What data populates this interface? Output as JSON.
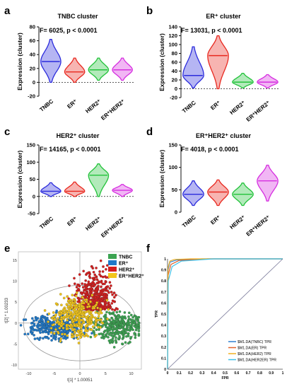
{
  "panels": {
    "a": {
      "letter": "a",
      "title": "TNBC cluster",
      "stat": "F= 6025, p < 0.0001"
    },
    "b": {
      "letter": "b",
      "title": "ER⁺ cluster",
      "stat": "F= 13031, p < 0.0001"
    },
    "c": {
      "letter": "c",
      "title": "HER2⁺ cluster",
      "stat": "F= 14165, p < 0.0001"
    },
    "d": {
      "letter": "d",
      "title": "ER⁺HER2⁺ cluster",
      "stat": "F= 4018, p < 0.0001"
    },
    "e": {
      "letter": "e"
    },
    "f": {
      "letter": "f"
    }
  },
  "colors": {
    "TNBC": "#2b2bdc",
    "ER": "#e8281f",
    "HER2": "#22c23a",
    "ERHER2": "#d62ee0",
    "sTNBC": "#3ba351",
    "sER": "#1f78c8",
    "sHER2": "#d41e1e",
    "sERHER2": "#f2c61b"
  },
  "chart_data": [
    {
      "type": "violin",
      "panel": "a",
      "title": "TNBC cluster",
      "ylabel": "Expression (cluster)",
      "categories": [
        "TNBC",
        "ER⁺",
        "HER2⁺",
        "ER⁺HER2⁺"
      ],
      "ylim": [
        -20,
        80
      ],
      "yticks": [
        "-20",
        "0",
        "20",
        "40",
        "60",
        "80"
      ],
      "medians": [
        30,
        15,
        18,
        18
      ],
      "ranges": [
        [
          0,
          62
        ],
        [
          0,
          35
        ],
        [
          3,
          35
        ],
        [
          3,
          35
        ]
      ]
    },
    {
      "type": "violin",
      "panel": "b",
      "title": "ER⁺ cluster",
      "ylabel": "Expression (cluster)",
      "categories": [
        "TNBC",
        "ER⁺",
        "HER2⁺",
        "ER⁺HER2⁺"
      ],
      "ylim": [
        -20,
        140
      ],
      "yticks": [
        "-20",
        "0",
        "20",
        "40",
        "60",
        "80",
        "100",
        "120",
        "140"
      ],
      "medians": [
        30,
        75,
        15,
        15
      ],
      "ranges": [
        [
          2,
          95
        ],
        [
          0,
          120
        ],
        [
          2,
          35
        ],
        [
          2,
          32
        ]
      ]
    },
    {
      "type": "violin",
      "panel": "c",
      "title": "HER2⁺ cluster",
      "ylabel": "Expression (cluster)",
      "categories": [
        "TNBC",
        "ER⁺",
        "HER2⁺",
        "ER⁺HER2⁺"
      ],
      "ylim": [
        -50,
        150
      ],
      "yticks": [
        "-50",
        "0",
        "50",
        "100",
        "150"
      ],
      "medians": [
        15,
        15,
        62,
        18
      ],
      "ranges": [
        [
          0,
          40
        ],
        [
          0,
          42
        ],
        [
          0,
          95
        ],
        [
          0,
          35
        ]
      ]
    },
    {
      "type": "violin",
      "panel": "d",
      "title": "ER⁺HER2⁺ cluster",
      "ylabel": "Expression (cluster)",
      "categories": [
        "TNBC",
        "ER⁺",
        "HER2⁺",
        "ER⁺HER2⁺"
      ],
      "ylim": [
        0,
        150
      ],
      "yticks": [
        "0",
        "50",
        "100",
        "150"
      ],
      "medians": [
        40,
        45,
        40,
        70
      ],
      "ranges": [
        [
          15,
          70
        ],
        [
          15,
          72
        ],
        [
          15,
          65
        ],
        [
          25,
          105
        ]
      ]
    },
    {
      "type": "scatter",
      "panel": "e",
      "xlabel": "t[1] * 1.00051",
      "ylabel": "t[2] * 1.00233",
      "xticks": [
        "-10",
        "-5",
        "0",
        "5",
        "10"
      ],
      "yticks": [
        "-10",
        "-5",
        "0",
        "5",
        "10",
        "15"
      ],
      "xlim": [
        -12,
        12
      ],
      "ylim": [
        -11,
        17
      ],
      "legend_position": "top-right",
      "series": [
        {
          "name": "TNBC",
          "center": [
            7.5,
            -1
          ]
        },
        {
          "name": "ER⁺",
          "center": [
            -4,
            -1
          ]
        },
        {
          "name": "HER2⁺",
          "center": [
            3,
            7
          ]
        },
        {
          "name": "ER⁺HER2⁺",
          "center": [
            0,
            1.5
          ]
        }
      ]
    },
    {
      "type": "line",
      "panel": "f",
      "xlabel": "FPR",
      "ylabel": "TPR",
      "xticks": [
        "0",
        "0.1",
        "0.2",
        "0.3",
        "0.4",
        "0.5",
        "0.6",
        "0.7",
        "0.8",
        "0.9",
        "1"
      ],
      "yticks": [
        "0",
        "0.1",
        "0.2",
        "0.3",
        "0.4",
        "0.5",
        "0.6",
        "0.7",
        "0.8",
        "0.9",
        "1"
      ],
      "xlim": [
        0,
        1
      ],
      "ylim": [
        0,
        1
      ],
      "legend_position": "bottom-right",
      "series": [
        {
          "name": "$M1.DA(TNBC) TPR",
          "color": "#2f7fd0",
          "points": [
            [
              0,
              0
            ],
            [
              0.005,
              0.9
            ],
            [
              0.02,
              0.97
            ],
            [
              0.08,
              0.99
            ],
            [
              0.3,
              1
            ],
            [
              1,
              1
            ]
          ]
        },
        {
          "name": "$M1.DA(ER) TPR",
          "color": "#e0602a",
          "points": [
            [
              0,
              0
            ],
            [
              0.005,
              0.85
            ],
            [
              0.03,
              0.95
            ],
            [
              0.1,
              0.985
            ],
            [
              0.35,
              1
            ],
            [
              1,
              1
            ]
          ]
        },
        {
          "name": "$M1.DA(HER2) TPR",
          "color": "#f0b020",
          "points": [
            [
              0,
              0
            ],
            [
              0.004,
              0.92
            ],
            [
              0.02,
              0.98
            ],
            [
              0.06,
              0.995
            ],
            [
              0.2,
              1
            ],
            [
              1,
              1
            ]
          ]
        },
        {
          "name": "$M1.DA(HER2ER) TPR",
          "color": "#3cc0e8",
          "points": [
            [
              0,
              0
            ],
            [
              0.006,
              0.8
            ],
            [
              0.04,
              0.93
            ],
            [
              0.12,
              0.98
            ],
            [
              0.4,
              1
            ],
            [
              1,
              1
            ]
          ]
        },
        {
          "name": "",
          "color": "#7a7a9a",
          "points": [
            [
              0,
              0
            ],
            [
              1,
              1
            ]
          ]
        }
      ]
    }
  ]
}
